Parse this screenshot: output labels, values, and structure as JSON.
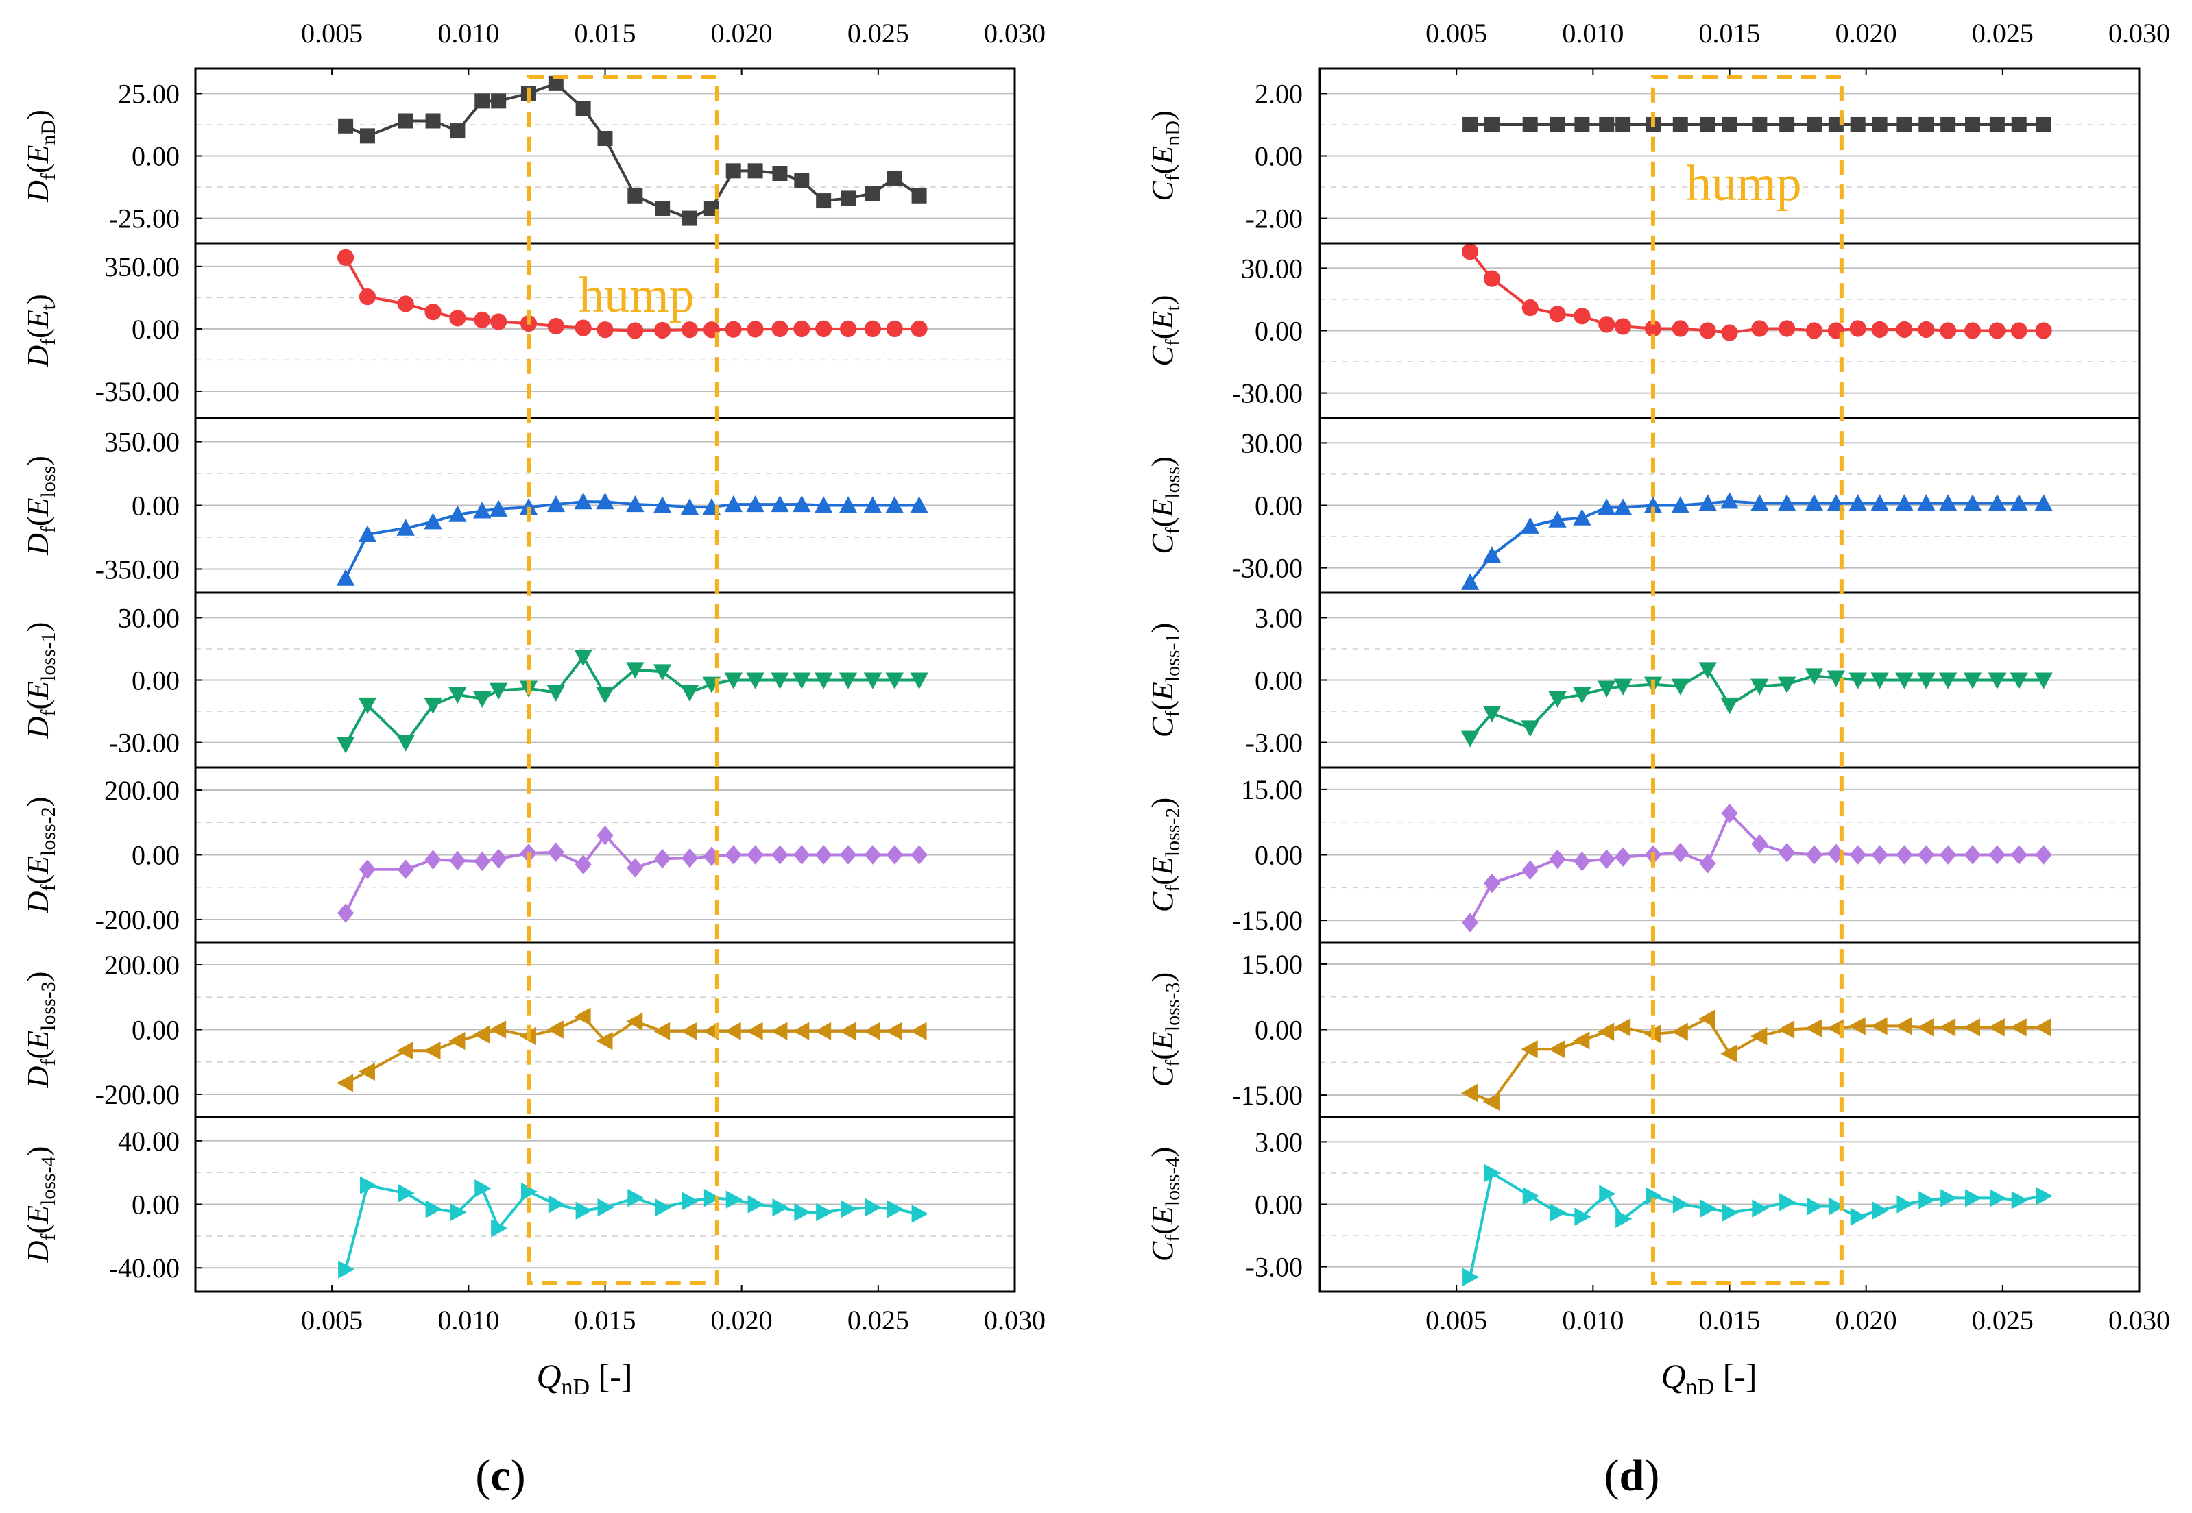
{
  "figure": {
    "panel_labels": [
      "(c)",
      "(d)"
    ],
    "xlabel": "QnD [-]",
    "xlabel_main": "Q",
    "xlabel_sub": "nD",
    "xlabel_unit": " [-]",
    "annotation": "hump",
    "colors": {
      "series_0": "#404040",
      "series_1": "#ef3b3b",
      "series_2": "#1f6fd6",
      "series_3": "#13a36a",
      "series_4": "#b57be0",
      "series_5": "#cc8f12",
      "series_6": "#1ec9cc",
      "hump": "#f5b21f"
    }
  },
  "chart_data": [
    {
      "panel": "(c)",
      "type": "line",
      "x_ticks": [
        "0.005",
        "0.010",
        "0.015",
        "0.020",
        "0.025",
        "0.030"
      ],
      "xlim": [
        0.0,
        0.03
      ],
      "hump_range": [
        0.0122,
        0.0191
      ],
      "x": [
        0.0055,
        0.0063,
        0.0077,
        0.0087,
        0.0096,
        0.0105,
        0.0111,
        0.0122,
        0.0132,
        0.0142,
        0.015,
        0.0161,
        0.0171,
        0.0181,
        0.0189,
        0.0197,
        0.0205,
        0.0214,
        0.0222,
        0.023,
        0.0239,
        0.0248,
        0.0256,
        0.0265
      ],
      "subplots": [
        {
          "label_main": "D",
          "label_sub1": "f",
          "label_var": "E",
          "label_sub2": "nD",
          "marker": "square",
          "ylim": [
            -35,
            35
          ],
          "yticks": [
            "25.00",
            "0.00",
            "-25.00"
          ],
          "ytick_values": [
            25,
            0,
            -25
          ],
          "values": [
            12,
            8,
            14,
            14,
            10,
            22,
            22,
            25,
            29,
            19,
            7,
            -16,
            -21,
            -25,
            -21,
            -6,
            -6,
            -7,
            -10,
            -18,
            -17,
            -15,
            -9,
            -16
          ]
        },
        {
          "label_main": "D",
          "label_sub1": "f",
          "label_var": "E",
          "label_sub2": "t",
          "marker": "circle",
          "ylim": [
            -500,
            480
          ],
          "yticks": [
            "350.00",
            "0.00",
            "-350.00"
          ],
          "ytick_values": [
            350,
            0,
            -350
          ],
          "values": [
            400,
            180,
            140,
            95,
            60,
            50,
            40,
            30,
            15,
            5,
            -5,
            -10,
            -8,
            -5,
            -5,
            -3,
            -2,
            0,
            0,
            0,
            0,
            0,
            0,
            0
          ]
        },
        {
          "label_main": "D",
          "label_sub1": "f",
          "label_var": "E",
          "label_sub2": "loss",
          "marker": "triangle-up",
          "ylim": [
            -480,
            480
          ],
          "yticks": [
            "350.00",
            "0.00",
            "-350.00"
          ],
          "ytick_values": [
            350,
            0,
            -350
          ],
          "values": [
            -400,
            -160,
            -125,
            -90,
            -50,
            -30,
            -20,
            -10,
            5,
            20,
            20,
            5,
            0,
            -10,
            -10,
            5,
            5,
            5,
            5,
            0,
            0,
            0,
            0,
            0
          ]
        },
        {
          "label_main": "D",
          "label_sub1": "f",
          "label_var": "E",
          "label_sub2": "loss-1",
          "marker": "triangle-down",
          "ylim": [
            -42,
            42
          ],
          "yticks": [
            "30.00",
            "0.00",
            "-30.00"
          ],
          "ytick_values": [
            30,
            0,
            -30
          ],
          "values": [
            -31,
            -12,
            -30,
            -12,
            -7,
            -9,
            -5,
            -4,
            -6,
            11,
            -7,
            5,
            4,
            -6,
            -2,
            0,
            0,
            0,
            0,
            0,
            0,
            0,
            0,
            0
          ]
        },
        {
          "label_main": "D",
          "label_sub1": "f",
          "label_var": "E",
          "label_sub2": "loss-2",
          "marker": "diamond",
          "ylim": [
            -270,
            270
          ],
          "yticks": [
            "200.00",
            "0.00",
            "-200.00"
          ],
          "ytick_values": [
            200,
            0,
            -200
          ],
          "values": [
            -180,
            -45,
            -45,
            -15,
            -18,
            -20,
            -12,
            5,
            8,
            -30,
            60,
            -40,
            -12,
            -10,
            -5,
            0,
            0,
            0,
            0,
            0,
            0,
            0,
            0,
            0
          ]
        },
        {
          "label_main": "D",
          "label_sub1": "f",
          "label_var": "E",
          "label_sub2": "loss-3",
          "marker": "triangle-left",
          "ylim": [
            -270,
            270
          ],
          "yticks": [
            "200.00",
            "0.00",
            "-200.00"
          ],
          "ytick_values": [
            200,
            0,
            -200
          ],
          "values": [
            -165,
            -130,
            -65,
            -65,
            -35,
            -15,
            0,
            -20,
            0,
            40,
            -35,
            25,
            -5,
            -5,
            -5,
            -5,
            -5,
            -5,
            -5,
            -5,
            -5,
            -5,
            -5,
            -5
          ]
        },
        {
          "label_main": "D",
          "label_sub1": "f",
          "label_var": "E",
          "label_sub2": "loss-4",
          "marker": "triangle-right",
          "ylim": [
            -55,
            55
          ],
          "yticks": [
            "40.00",
            "0.00",
            "-40.00"
          ],
          "ytick_values": [
            40,
            0,
            -40
          ],
          "values": [
            -41,
            12,
            7,
            -3,
            -5,
            10,
            -15,
            8,
            0,
            -4,
            -2,
            4,
            -2,
            2,
            4,
            3,
            0,
            -2,
            -5,
            -5,
            -3,
            -2,
            -3,
            -6
          ]
        }
      ]
    },
    {
      "panel": "(d)",
      "type": "line",
      "x_ticks": [
        "0.005",
        "0.010",
        "0.015",
        "0.020",
        "0.025",
        "0.030"
      ],
      "xlim": [
        0.0,
        0.03
      ],
      "hump_range": [
        0.0122,
        0.0191
      ],
      "x": [
        0.0055,
        0.0063,
        0.0077,
        0.0087,
        0.0096,
        0.0105,
        0.0111,
        0.0122,
        0.0132,
        0.0142,
        0.015,
        0.0161,
        0.0171,
        0.0181,
        0.0189,
        0.0197,
        0.0205,
        0.0214,
        0.0222,
        0.023,
        0.0239,
        0.0248,
        0.0256,
        0.0265
      ],
      "subplots": [
        {
          "label_main": "C",
          "label_sub1": "f",
          "label_var": "E",
          "label_sub2": "nD",
          "marker": "square",
          "ylim": [
            -2.8,
            2.8
          ],
          "yticks": [
            "2.00",
            "0.00",
            "-2.00"
          ],
          "ytick_values": [
            2,
            0,
            -2
          ],
          "values": [
            1,
            1,
            1,
            1,
            1,
            1,
            1,
            1,
            1,
            1,
            1,
            1,
            1,
            1,
            1,
            1,
            1,
            1,
            1,
            1,
            1,
            1,
            1,
            1
          ]
        },
        {
          "label_main": "C",
          "label_sub1": "f",
          "label_var": "E",
          "label_sub2": "t",
          "marker": "circle",
          "ylim": [
            -42,
            42
          ],
          "yticks": [
            "30.00",
            "0.00",
            "-30.00"
          ],
          "ytick_values": [
            30,
            0,
            -30
          ],
          "values": [
            38,
            25,
            11,
            8,
            7,
            3,
            2,
            1,
            1,
            0,
            -1,
            1,
            1,
            0,
            0,
            1,
            0.5,
            0.5,
            0.5,
            0,
            0,
            0,
            0,
            0
          ]
        },
        {
          "label_main": "C",
          "label_sub1": "f",
          "label_var": "E",
          "label_sub2": "loss",
          "marker": "triangle-up",
          "ylim": [
            -42,
            42
          ],
          "yticks": [
            "30.00",
            "0.00",
            "-30.00"
          ],
          "ytick_values": [
            30,
            0,
            -30
          ],
          "values": [
            -37,
            -24,
            -10,
            -7,
            -6,
            -1,
            -1,
            0,
            0,
            1,
            2,
            1,
            1,
            1,
            1,
            1,
            1,
            1,
            1,
            1,
            1,
            1,
            1,
            1
          ]
        },
        {
          "label_main": "C",
          "label_sub1": "f",
          "label_var": "E",
          "label_sub2": "loss-1",
          "marker": "triangle-down",
          "ylim": [
            -4.2,
            4.2
          ],
          "yticks": [
            "3.00",
            "0.00",
            "-3.00"
          ],
          "ytick_values": [
            3,
            0,
            -3
          ],
          "values": [
            -2.8,
            -1.6,
            -2.3,
            -0.9,
            -0.7,
            -0.4,
            -0.3,
            -0.2,
            -0.3,
            0.5,
            -1.2,
            -0.3,
            -0.2,
            0.2,
            0.1,
            0,
            0,
            0,
            0,
            0,
            0,
            0,
            0,
            0
          ]
        },
        {
          "label_main": "C",
          "label_sub1": "f",
          "label_var": "E",
          "label_sub2": "loss-2",
          "marker": "diamond",
          "ylim": [
            -20,
            20
          ],
          "yticks": [
            "15.00",
            "0.00",
            "-15.00"
          ],
          "ytick_values": [
            15,
            0,
            -15
          ],
          "values": [
            -15.5,
            -6.5,
            -3.5,
            -1,
            -1.5,
            -1,
            -0.5,
            0,
            0.5,
            -2,
            9.5,
            2.5,
            0.5,
            0,
            0.3,
            0,
            0,
            0,
            0,
            0,
            0,
            0,
            0,
            0
          ]
        },
        {
          "label_main": "C",
          "label_sub1": "f",
          "label_var": "E",
          "label_sub2": "loss-3",
          "marker": "triangle-left",
          "ylim": [
            -20,
            20
          ],
          "yticks": [
            "15.00",
            "0.00",
            "-15.00"
          ],
          "ytick_values": [
            15,
            0,
            -15
          ],
          "values": [
            -14.5,
            -16.5,
            -4.5,
            -4.5,
            -2.5,
            -0.5,
            0.5,
            -1,
            -0.5,
            2.5,
            -5.5,
            -1.5,
            0,
            0.3,
            0.3,
            0.8,
            0.8,
            0.8,
            0.5,
            0.5,
            0.5,
            0.5,
            0.5,
            0.5
          ]
        },
        {
          "label_main": "C",
          "label_sub1": "f",
          "label_var": "E",
          "label_sub2": "loss-4",
          "marker": "triangle-right",
          "ylim": [
            -4.2,
            4.2
          ],
          "yticks": [
            "3.00",
            "0.00",
            "-3.00"
          ],
          "ytick_values": [
            3,
            0,
            -3
          ],
          "values": [
            -3.5,
            1.5,
            0.4,
            -0.4,
            -0.6,
            0.5,
            -0.7,
            0.4,
            0,
            -0.2,
            -0.4,
            -0.2,
            0.1,
            -0.1,
            -0.1,
            -0.6,
            -0.3,
            0,
            0.2,
            0.3,
            0.3,
            0.3,
            0.2,
            0.4
          ]
        }
      ]
    }
  ]
}
